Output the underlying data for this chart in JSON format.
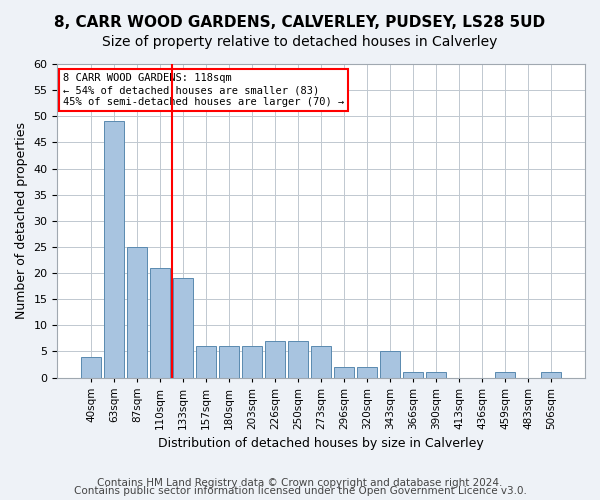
{
  "title1": "8, CARR WOOD GARDENS, CALVERLEY, PUDSEY, LS28 5UD",
  "title2": "Size of property relative to detached houses in Calverley",
  "xlabel": "Distribution of detached houses by size in Calverley",
  "ylabel": "Number of detached properties",
  "categories": [
    "40sqm",
    "63sqm",
    "87sqm",
    "110sqm",
    "133sqm",
    "157sqm",
    "180sqm",
    "203sqm",
    "226sqm",
    "250sqm",
    "273sqm",
    "296sqm",
    "320sqm",
    "343sqm",
    "366sqm",
    "390sqm",
    "413sqm",
    "436sqm",
    "459sqm",
    "483sqm",
    "506sqm"
  ],
  "values": [
    4,
    49,
    25,
    21,
    19,
    6,
    6,
    6,
    7,
    7,
    6,
    2,
    2,
    5,
    1,
    1,
    0,
    0,
    1,
    0,
    1
  ],
  "bar_color": "#a8c4e0",
  "bar_edge_color": "#5a8ab0",
  "vline_x": 3,
  "vline_color": "red",
  "annotation_text": "8 CARR WOOD GARDENS: 118sqm\n← 54% of detached houses are smaller (83)\n45% of semi-detached houses are larger (70) →",
  "annotation_box_color": "white",
  "annotation_box_edge": "red",
  "ylim": [
    0,
    60
  ],
  "yticks": [
    0,
    5,
    10,
    15,
    20,
    25,
    30,
    35,
    40,
    45,
    50,
    55,
    60
  ],
  "footer1": "Contains HM Land Registry data © Crown copyright and database right 2024.",
  "footer2": "Contains public sector information licensed under the Open Government Licence v3.0.",
  "bg_color": "#eef2f7",
  "plot_bg_color": "#ffffff",
  "title1_fontsize": 11,
  "title2_fontsize": 10,
  "xlabel_fontsize": 9,
  "ylabel_fontsize": 9,
  "footer_fontsize": 7.5
}
